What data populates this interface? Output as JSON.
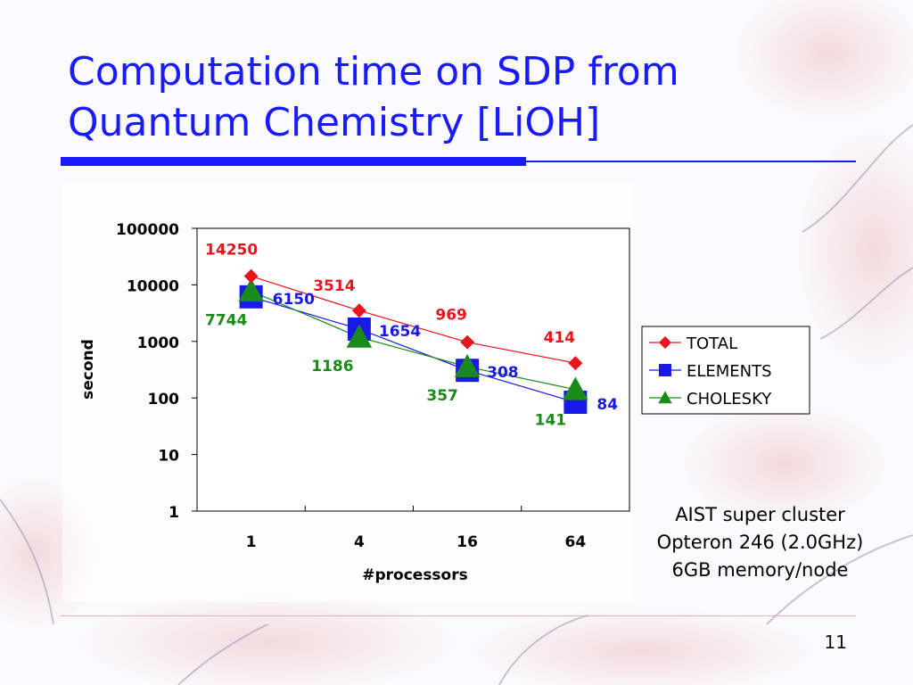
{
  "slide": {
    "title_line1": "Computation time on SDP from",
    "title_line2": "Quantum Chemistry [LiOH]",
    "page_number": "11",
    "note_lines": [
      "AIST super cluster",
      "Opteron 246 (2.0GHz)",
      "6GB memory/node"
    ],
    "accent_color": "#1a1aff"
  },
  "chart_data": {
    "type": "line",
    "xlabel": "#processors",
    "ylabel": "second",
    "y_scale": "log",
    "ylim": [
      1,
      100000
    ],
    "y_ticks": [
      1,
      10,
      100,
      1000,
      10000,
      100000
    ],
    "y_tick_labels": [
      "1",
      "10",
      "100",
      "1000",
      "10000",
      "100000"
    ],
    "categories": [
      "1",
      "4",
      "16",
      "64"
    ],
    "grid": false,
    "legend_position": "right",
    "series": [
      {
        "name": "TOTAL",
        "values": [
          14250,
          3514,
          969,
          414
        ],
        "labels": [
          "14250",
          "3514",
          "969",
          "414"
        ],
        "color": "#e8141e",
        "marker": "diamond"
      },
      {
        "name": "ELEMENTS",
        "values": [
          6150,
          1654,
          308,
          84
        ],
        "labels": [
          "6150",
          "1654",
          "308",
          "84"
        ],
        "color": "#1a1ae6",
        "marker": "square"
      },
      {
        "name": "CHOLESKY",
        "values": [
          7744,
          1186,
          357,
          141
        ],
        "labels": [
          "7744",
          "1186",
          "357",
          "141"
        ],
        "color": "#1a8a1a",
        "marker": "triangle"
      }
    ]
  }
}
